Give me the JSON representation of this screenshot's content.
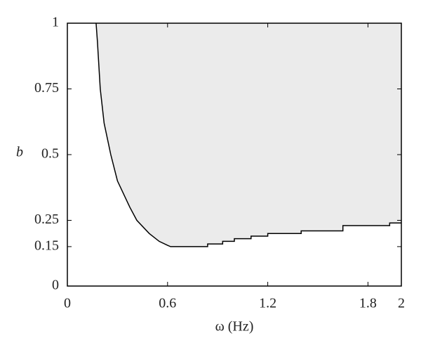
{
  "chart_data": {
    "type": "area",
    "fill": "above",
    "fill_color": "#ebebeb",
    "color": "#000000",
    "xlabel": "ω (Hz)",
    "ylabel": "b",
    "x": [
      0.172,
      0.18,
      0.197,
      0.22,
      0.26,
      0.3,
      0.374,
      0.416,
      0.49,
      0.55,
      0.6,
      0.618,
      0.84,
      0.84,
      0.93,
      0.93,
      1.0,
      1.0,
      1.1,
      1.1,
      1.2,
      1.2,
      1.4,
      1.4,
      1.65,
      1.65,
      1.93,
      1.93,
      2.0
    ],
    "values": [
      1,
      0.93,
      0.75,
      0.62,
      0.5,
      0.4,
      0.3,
      0.25,
      0.2,
      0.17,
      0.155,
      0.15,
      0.15,
      0.16,
      0.16,
      0.17,
      0.17,
      0.18,
      0.18,
      0.19,
      0.19,
      0.2,
      0.2,
      0.21,
      0.21,
      0.23,
      0.23,
      0.24,
      0.24
    ],
    "xlim": [
      0,
      2
    ],
    "ylim": [
      0,
      1
    ],
    "xticks": [
      0,
      0.6,
      1.2,
      1.8,
      2
    ],
    "yticks": [
      0,
      0.15,
      0.25,
      0.5,
      0.75,
      1
    ]
  }
}
